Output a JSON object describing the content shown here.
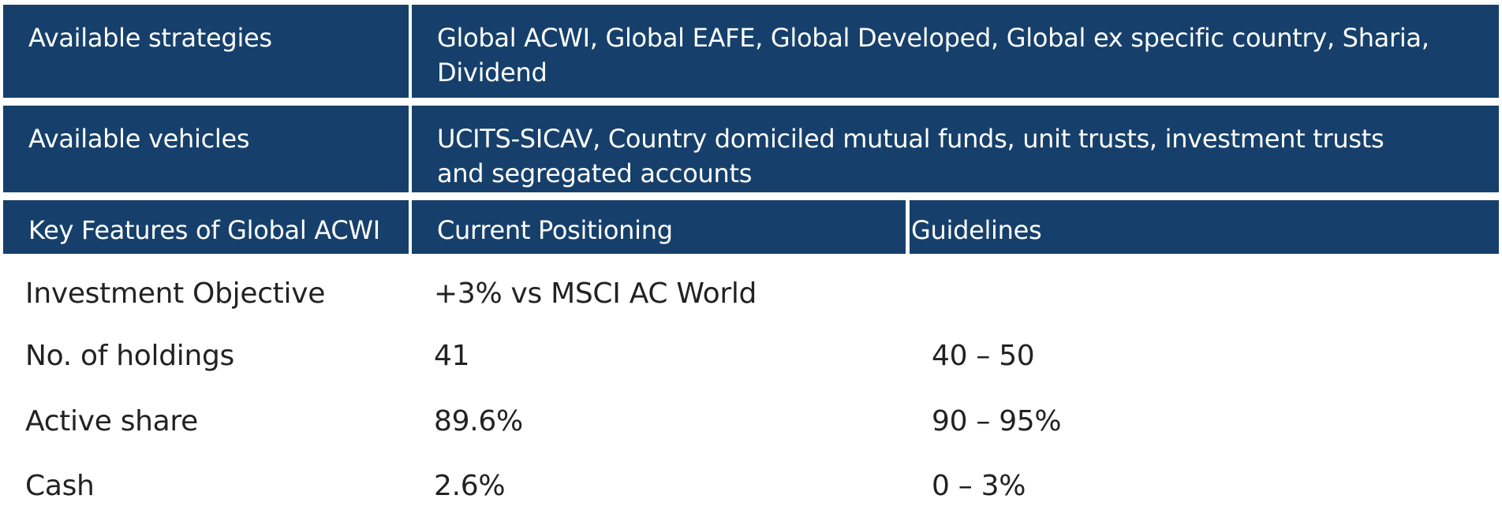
{
  "colors": {
    "header_bg": "#16406b",
    "header_text": "#ffffff",
    "body_text": "#222222"
  },
  "info_rows": [
    {
      "label": "Available strategies",
      "value": "Global ACWI, Global EAFE, Global Developed, Global ex specific country, Sharia, Dividend"
    },
    {
      "label": "Available vehicles",
      "value": "UCITS-SICAV, Country domiciled mutual funds, unit trusts, investment trusts and segregated accounts"
    }
  ],
  "table": {
    "headers": [
      "Key Features of Global ACWI",
      "Current Positioning",
      "Guidelines"
    ],
    "rows": [
      {
        "feature": "Investment Objective",
        "current": "+3% vs MSCI AC World",
        "guideline": ""
      },
      {
        "feature": "No. of holdings",
        "current": "41",
        "guideline": "40 – 50"
      },
      {
        "feature": "Active share",
        "current": "89.6%",
        "guideline": "90 – 95%"
      },
      {
        "feature": "Cash",
        "current": "2.6%",
        "guideline": "0 – 3%"
      }
    ]
  }
}
